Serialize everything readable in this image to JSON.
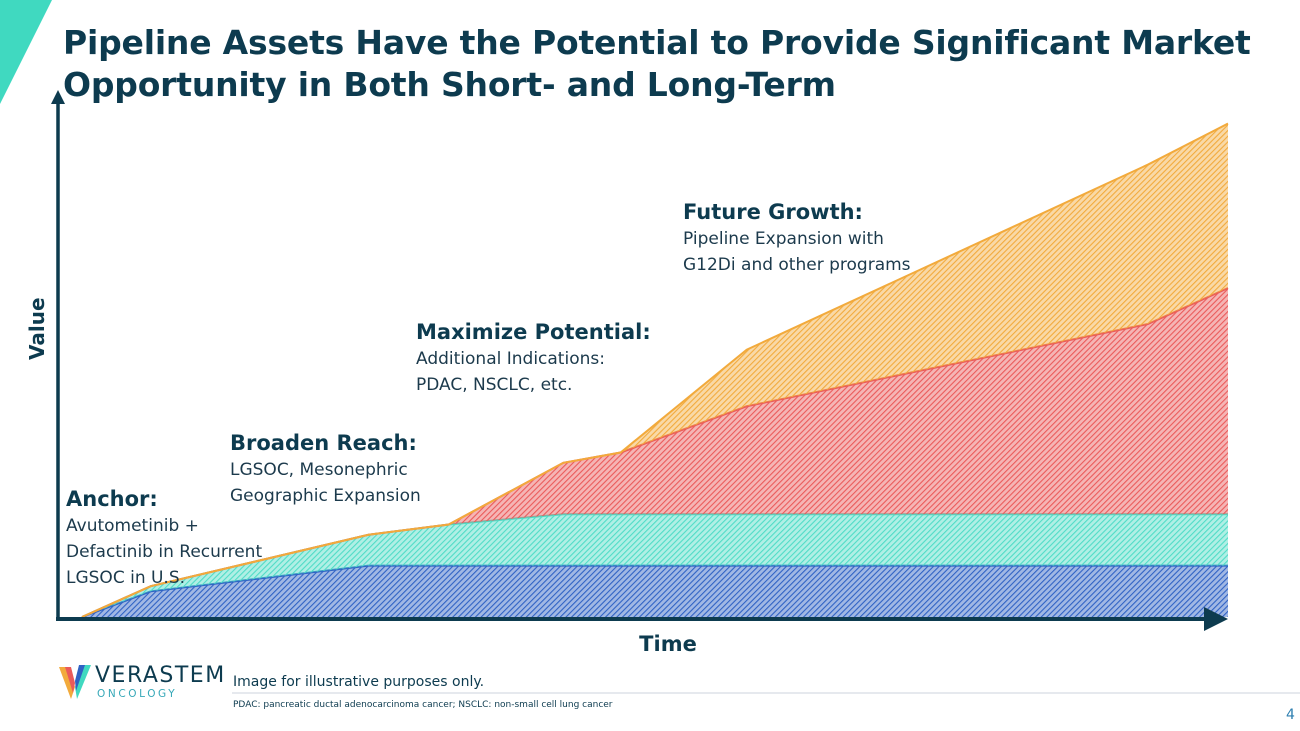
{
  "slide": {
    "title_line1": "Pipeline Assets Have the Potential to Provide Significant Market",
    "title_line2": "Opportunity in Both Short- and Long-Term",
    "disclaimer": "Image for illustrative purposes only.",
    "footnote": "PDAC: pancreatic ductal adenocarcinoma cancer; NSCLC: non-small cell lung cancer",
    "page_number": "4"
  },
  "logo": {
    "name": "VERASTEM",
    "subtitle": "ONCOLOGY"
  },
  "colors": {
    "title": "#0d3b4f",
    "accent_teal": "#40d9c0",
    "anchor": "#2f62c4",
    "broaden": "#4fdcc6",
    "maximize": "#ea5a5a",
    "future": "#f2aa3c"
  },
  "chart_data": {
    "type": "area",
    "stacked": true,
    "title": "",
    "xlabel": "Time",
    "ylabel": "Value",
    "x": [
      0,
      0.06,
      0.25,
      0.32,
      0.42,
      0.47,
      0.58,
      0.93,
      1.0
    ],
    "ylim": [
      0,
      100
    ],
    "grid": false,
    "series": [
      {
        "name": "Anchor",
        "heading": "Anchor:",
        "lines": [
          "Avutometinib +",
          "Defactinib in Recurrent",
          "LGSOC in U.S."
        ],
        "values": [
          0,
          5,
          10,
          10,
          10,
          10,
          10,
          10,
          10
        ]
      },
      {
        "name": "Broaden Reach",
        "heading": "Broaden Reach:",
        "lines": [
          "LGSOC, Mesonephric",
          "Geographic Expansion"
        ],
        "values": [
          0,
          1,
          6,
          8,
          10,
          10,
          10,
          10,
          10
        ]
      },
      {
        "name": "Maximize Potential",
        "heading": "Maximize Potential:",
        "lines": [
          "Additional Indications:",
          "PDAC, NSCLC,  etc."
        ],
        "values": [
          0,
          0,
          0,
          0,
          10,
          12,
          21,
          37,
          44
        ]
      },
      {
        "name": "Future Growth",
        "heading": "Future Growth:",
        "lines": [
          "Pipeline Expansion with",
          "G12Di and other programs"
        ],
        "values": [
          0,
          0,
          0,
          0,
          0,
          0,
          11,
          31,
          32
        ]
      }
    ]
  }
}
